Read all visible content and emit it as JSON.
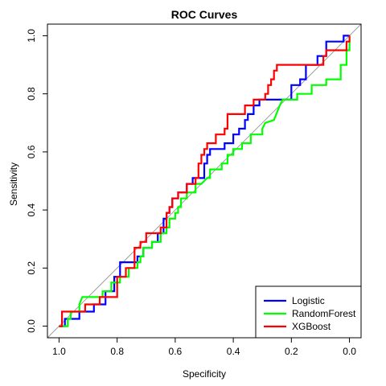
{
  "chart_data": {
    "type": "line",
    "title": "ROC Curves",
    "xlabel": "Specificity",
    "ylabel": "Sensitivity",
    "xlim": [
      1.04,
      -0.04
    ],
    "ylim": [
      -0.04,
      1.04
    ],
    "x_reversed": true,
    "grid": false,
    "xticks": [
      1.0,
      0.8,
      0.6,
      0.4,
      0.2,
      0.0
    ],
    "xtick_labels": [
      "1.0",
      "0.8",
      "0.6",
      "0.4",
      "0.2",
      "0.0"
    ],
    "yticks": [
      0.0,
      0.2,
      0.4,
      0.6,
      0.8,
      1.0
    ],
    "ytick_labels": [
      "0.0",
      "0.2",
      "0.4",
      "0.6",
      "0.8",
      "1.0"
    ],
    "reference_line": {
      "from": [
        1,
        0
      ],
      "to": [
        0,
        1
      ],
      "color": "#a0a0a0"
    },
    "legend_position": "bottom-right",
    "series": [
      {
        "name": "Logistic",
        "color": "#0000ff",
        "points": [
          [
            1.0,
            0.0
          ],
          [
            0.98,
            0.0
          ],
          [
            0.98,
            0.025
          ],
          [
            0.93,
            0.025
          ],
          [
            0.93,
            0.05
          ],
          [
            0.88,
            0.05
          ],
          [
            0.88,
            0.075
          ],
          [
            0.84,
            0.075
          ],
          [
            0.84,
            0.12
          ],
          [
            0.81,
            0.12
          ],
          [
            0.81,
            0.17
          ],
          [
            0.79,
            0.17
          ],
          [
            0.79,
            0.22
          ],
          [
            0.73,
            0.22
          ],
          [
            0.73,
            0.24
          ],
          [
            0.71,
            0.24
          ],
          [
            0.71,
            0.27
          ],
          [
            0.68,
            0.27
          ],
          [
            0.68,
            0.29
          ],
          [
            0.66,
            0.29
          ],
          [
            0.66,
            0.32
          ],
          [
            0.64,
            0.32
          ],
          [
            0.64,
            0.37
          ],
          [
            0.63,
            0.37
          ],
          [
            0.63,
            0.39
          ],
          [
            0.62,
            0.39
          ],
          [
            0.62,
            0.41
          ],
          [
            0.61,
            0.41
          ],
          [
            0.61,
            0.44
          ],
          [
            0.59,
            0.44
          ],
          [
            0.59,
            0.46
          ],
          [
            0.56,
            0.46
          ],
          [
            0.56,
            0.49
          ],
          [
            0.54,
            0.49
          ],
          [
            0.54,
            0.51
          ],
          [
            0.5,
            0.51
          ],
          [
            0.5,
            0.56
          ],
          [
            0.49,
            0.56
          ],
          [
            0.49,
            0.59
          ],
          [
            0.48,
            0.59
          ],
          [
            0.48,
            0.61
          ],
          [
            0.43,
            0.61
          ],
          [
            0.43,
            0.63
          ],
          [
            0.4,
            0.63
          ],
          [
            0.4,
            0.66
          ],
          [
            0.38,
            0.66
          ],
          [
            0.38,
            0.68
          ],
          [
            0.36,
            0.68
          ],
          [
            0.36,
            0.71
          ],
          [
            0.35,
            0.71
          ],
          [
            0.35,
            0.73
          ],
          [
            0.33,
            0.73
          ],
          [
            0.33,
            0.76
          ],
          [
            0.31,
            0.76
          ],
          [
            0.31,
            0.78
          ],
          [
            0.2,
            0.78
          ],
          [
            0.2,
            0.83
          ],
          [
            0.17,
            0.83
          ],
          [
            0.17,
            0.85
          ],
          [
            0.15,
            0.85
          ],
          [
            0.15,
            0.9
          ],
          [
            0.11,
            0.9
          ],
          [
            0.11,
            0.93
          ],
          [
            0.08,
            0.93
          ],
          [
            0.08,
            0.98
          ],
          [
            0.02,
            0.98
          ],
          [
            0.02,
            1.0
          ],
          [
            0.0,
            1.0
          ]
        ]
      },
      {
        "name": "RandomForest",
        "color": "#00ff00",
        "points": [
          [
            1.0,
            0.0
          ],
          [
            0.97,
            0.0
          ],
          [
            0.97,
            0.025
          ],
          [
            0.96,
            0.025
          ],
          [
            0.96,
            0.05
          ],
          [
            0.93,
            0.05
          ],
          [
            0.93,
            0.075
          ],
          [
            0.92,
            0.1
          ],
          [
            0.85,
            0.1
          ],
          [
            0.85,
            0.12
          ],
          [
            0.82,
            0.12
          ],
          [
            0.82,
            0.15
          ],
          [
            0.79,
            0.15
          ],
          [
            0.79,
            0.17
          ],
          [
            0.76,
            0.17
          ],
          [
            0.76,
            0.2
          ],
          [
            0.73,
            0.2
          ],
          [
            0.73,
            0.22
          ],
          [
            0.72,
            0.22
          ],
          [
            0.72,
            0.24
          ],
          [
            0.71,
            0.24
          ],
          [
            0.71,
            0.27
          ],
          [
            0.68,
            0.27
          ],
          [
            0.68,
            0.29
          ],
          [
            0.65,
            0.29
          ],
          [
            0.65,
            0.32
          ],
          [
            0.63,
            0.32
          ],
          [
            0.63,
            0.34
          ],
          [
            0.62,
            0.34
          ],
          [
            0.62,
            0.37
          ],
          [
            0.6,
            0.37
          ],
          [
            0.6,
            0.39
          ],
          [
            0.59,
            0.39
          ],
          [
            0.59,
            0.41
          ],
          [
            0.58,
            0.41
          ],
          [
            0.58,
            0.44
          ],
          [
            0.56,
            0.44
          ],
          [
            0.56,
            0.46
          ],
          [
            0.53,
            0.46
          ],
          [
            0.53,
            0.49
          ],
          [
            0.51,
            0.49
          ],
          [
            0.49,
            0.51
          ],
          [
            0.48,
            0.51
          ],
          [
            0.48,
            0.54
          ],
          [
            0.44,
            0.54
          ],
          [
            0.44,
            0.56
          ],
          [
            0.42,
            0.56
          ],
          [
            0.42,
            0.59
          ],
          [
            0.4,
            0.59
          ],
          [
            0.4,
            0.61
          ],
          [
            0.37,
            0.61
          ],
          [
            0.37,
            0.63
          ],
          [
            0.34,
            0.63
          ],
          [
            0.34,
            0.66
          ],
          [
            0.3,
            0.66
          ],
          [
            0.3,
            0.68
          ],
          [
            0.29,
            0.7
          ],
          [
            0.26,
            0.71
          ],
          [
            0.24,
            0.76
          ],
          [
            0.23,
            0.78
          ],
          [
            0.18,
            0.78
          ],
          [
            0.18,
            0.8
          ],
          [
            0.13,
            0.8
          ],
          [
            0.13,
            0.83
          ],
          [
            0.08,
            0.83
          ],
          [
            0.08,
            0.85
          ],
          [
            0.03,
            0.85
          ],
          [
            0.03,
            0.9
          ],
          [
            0.01,
            0.9
          ],
          [
            0.01,
            0.95
          ],
          [
            0.0,
            0.95
          ],
          [
            0.0,
            1.0
          ]
        ]
      },
      {
        "name": "XGBoost",
        "color": "#ff0000",
        "points": [
          [
            1.0,
            0.0
          ],
          [
            0.99,
            0.0
          ],
          [
            0.99,
            0.025
          ],
          [
            0.99,
            0.05
          ],
          [
            0.91,
            0.05
          ],
          [
            0.91,
            0.075
          ],
          [
            0.86,
            0.075
          ],
          [
            0.86,
            0.1
          ],
          [
            0.8,
            0.1
          ],
          [
            0.8,
            0.17
          ],
          [
            0.77,
            0.17
          ],
          [
            0.77,
            0.2
          ],
          [
            0.74,
            0.2
          ],
          [
            0.74,
            0.27
          ],
          [
            0.72,
            0.27
          ],
          [
            0.72,
            0.29
          ],
          [
            0.7,
            0.29
          ],
          [
            0.7,
            0.32
          ],
          [
            0.65,
            0.32
          ],
          [
            0.65,
            0.34
          ],
          [
            0.63,
            0.34
          ],
          [
            0.63,
            0.39
          ],
          [
            0.62,
            0.39
          ],
          [
            0.62,
            0.41
          ],
          [
            0.61,
            0.41
          ],
          [
            0.61,
            0.44
          ],
          [
            0.59,
            0.44
          ],
          [
            0.59,
            0.46
          ],
          [
            0.56,
            0.46
          ],
          [
            0.56,
            0.49
          ],
          [
            0.53,
            0.49
          ],
          [
            0.53,
            0.51
          ],
          [
            0.52,
            0.51
          ],
          [
            0.52,
            0.56
          ],
          [
            0.51,
            0.56
          ],
          [
            0.51,
            0.59
          ],
          [
            0.5,
            0.59
          ],
          [
            0.5,
            0.61
          ],
          [
            0.49,
            0.61
          ],
          [
            0.49,
            0.63
          ],
          [
            0.46,
            0.63
          ],
          [
            0.46,
            0.66
          ],
          [
            0.43,
            0.66
          ],
          [
            0.43,
            0.68
          ],
          [
            0.42,
            0.68
          ],
          [
            0.42,
            0.73
          ],
          [
            0.36,
            0.73
          ],
          [
            0.36,
            0.76
          ],
          [
            0.33,
            0.76
          ],
          [
            0.33,
            0.78
          ],
          [
            0.29,
            0.78
          ],
          [
            0.29,
            0.8
          ],
          [
            0.28,
            0.8
          ],
          [
            0.28,
            0.83
          ],
          [
            0.27,
            0.83
          ],
          [
            0.27,
            0.85
          ],
          [
            0.26,
            0.85
          ],
          [
            0.26,
            0.88
          ],
          [
            0.25,
            0.88
          ],
          [
            0.25,
            0.9
          ],
          [
            0.09,
            0.9
          ],
          [
            0.09,
            0.93
          ],
          [
            0.08,
            0.93
          ],
          [
            0.08,
            0.95
          ],
          [
            0.01,
            0.95
          ],
          [
            0.01,
            0.98
          ],
          [
            0.0,
            0.98
          ],
          [
            0.0,
            1.0
          ]
        ]
      }
    ]
  }
}
